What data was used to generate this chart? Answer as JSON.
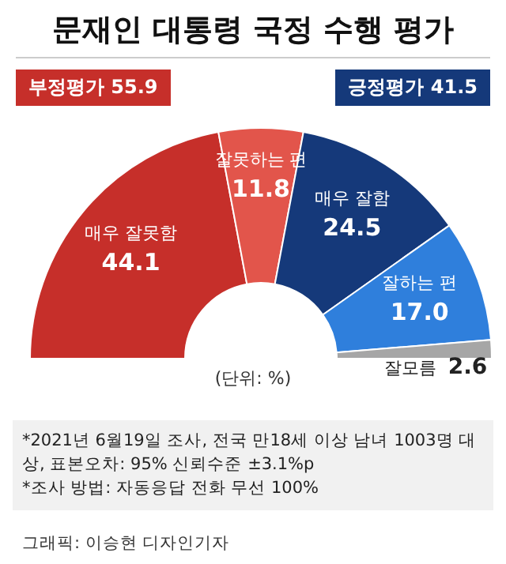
{
  "chart_data": {
    "type": "donut",
    "title": "문재인 대통령 국정 수행 평가",
    "categories": [
      "매우 잘못함",
      "잘못하는 편",
      "매우 잘함",
      "잘하는 편",
      "잘모름"
    ],
    "values": [
      44.1,
      11.8,
      24.5,
      17.0,
      2.6
    ],
    "colors": [
      "#c62f2a",
      "#e2554b",
      "#15397a",
      "#2f7fdc",
      "#a6a6a6"
    ],
    "value_labels": [
      "44.1",
      "11.8",
      "24.5",
      "17.0",
      "2.6"
    ],
    "annotations": [
      "부정평가 55.9",
      "긍정평가 41.5",
      "(단위: %)",
      "*2021년 6월19일 조사, 전국 만18세 이상 남녀 1003명 대상, 표본오차: 95% 신뢰수준 ±3.1%p",
      "*조사 방법: 자동응답 전화 무선 100%",
      "그래픽: 이승현 디자인기자"
    ]
  }
}
